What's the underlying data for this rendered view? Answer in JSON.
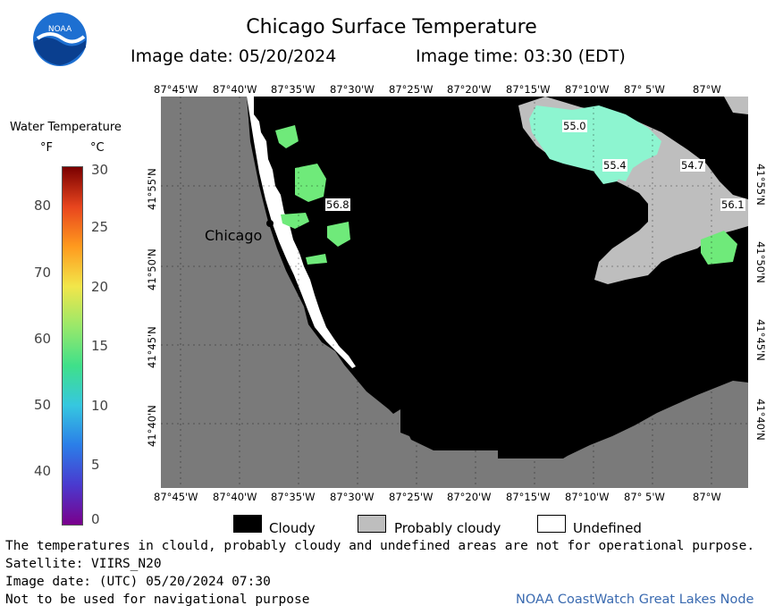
{
  "title": "Chicago Surface Temperature",
  "image_date_label": "Image date: 05/20/2024",
  "image_time_label": "Image time: 03:30 (EDT)",
  "colorbar": {
    "title": "Water Temperature",
    "unit_f": "°F",
    "unit_c": "°C",
    "f_ticks": [
      "80",
      "70",
      "60",
      "50",
      "40"
    ],
    "c_ticks": [
      "30",
      "25",
      "20",
      "15",
      "10",
      "5",
      "0"
    ],
    "colors": [
      "#7a0000",
      "#e8451e",
      "#ff9a1e",
      "#f2e64a",
      "#9ae86a",
      "#3fe08a",
      "#36c7e0",
      "#2b7ee8",
      "#4a3acf",
      "#7a008c"
    ]
  },
  "longitude_labels": [
    "87°45'W",
    "87°40'W",
    "87°35'W",
    "87°30'W",
    "87°25'W",
    "87°20'W",
    "87°15'W",
    "87°10'W",
    "87° 5'W",
    "87°W"
  ],
  "latitude_labels": [
    "41°55'N",
    "41°50'N",
    "41°45'N",
    "41°40'N"
  ],
  "map": {
    "city_label": "Chicago",
    "temperature_labels": [
      "55.0",
      "55.4",
      "54.7",
      "56.8",
      "56.1"
    ],
    "colors": {
      "land": "#7a7a7a",
      "cloudy": "#000000",
      "probably_cloudy": "#bebebe",
      "undefined": "#ffffff",
      "water_warm": "#8df5d0",
      "water_green": "#6fea7a"
    }
  },
  "legend": {
    "cloudy": "Cloudy",
    "probably_cloudy": "Probably cloudy",
    "undefined": "Undefined"
  },
  "notes": {
    "line1": "The temperatures in clould, probably cloudy and undefined areas are not for operational purpose.",
    "line2": "Satellite: VIIRS_N20",
    "line3": "Image date: (UTC) 05/20/2024  07:30",
    "line4": "Not to be used for navigational purpose"
  },
  "credit": "NOAA CoastWatch Great Lakes Node",
  "logo_text": "NOAA"
}
